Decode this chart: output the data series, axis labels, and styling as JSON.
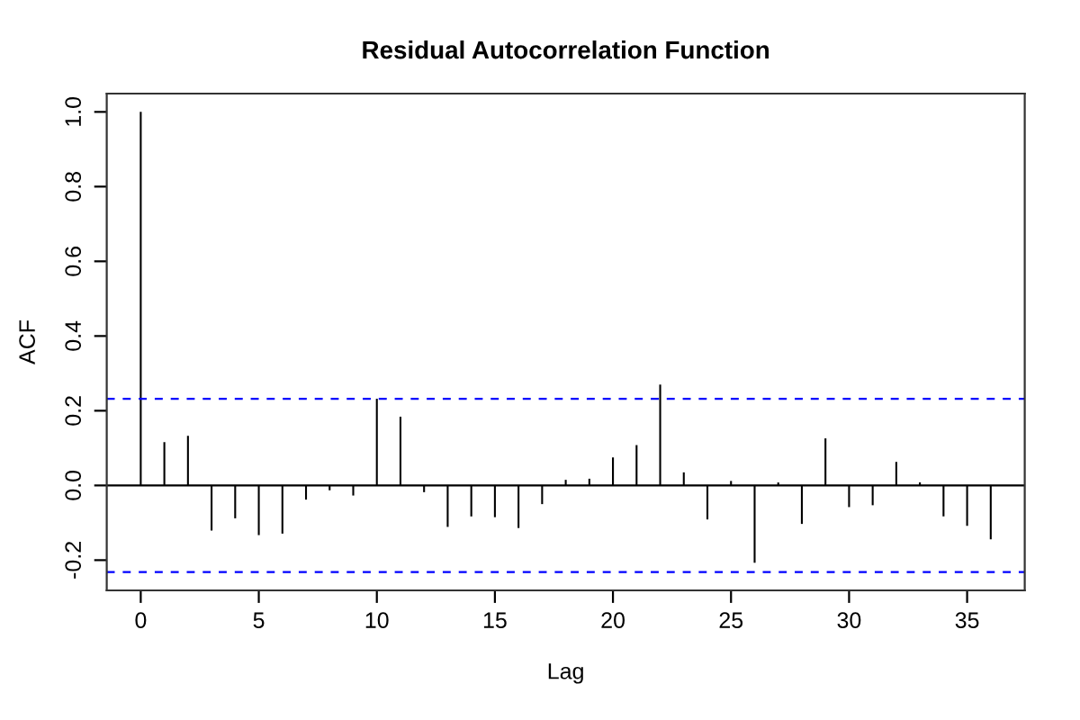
{
  "chart_data": {
    "type": "bar",
    "title": "Residual Autocorrelation Function",
    "xlabel": "Lag",
    "ylabel": "ACF",
    "x": [
      0,
      1,
      2,
      3,
      4,
      5,
      6,
      7,
      8,
      9,
      10,
      11,
      12,
      13,
      14,
      15,
      16,
      17,
      18,
      19,
      20,
      21,
      22,
      23,
      24,
      25,
      26,
      27,
      28,
      29,
      30,
      31,
      32,
      33,
      34,
      35,
      36
    ],
    "values": [
      1.0,
      0.116,
      0.133,
      -0.121,
      -0.088,
      -0.133,
      -0.129,
      -0.038,
      -0.013,
      -0.027,
      0.232,
      0.184,
      -0.018,
      -0.111,
      -0.083,
      -0.085,
      -0.114,
      -0.05,
      0.015,
      0.018,
      0.075,
      0.108,
      0.27,
      0.035,
      -0.091,
      0.012,
      -0.207,
      0.008,
      -0.103,
      0.126,
      -0.058,
      -0.053,
      0.063,
      0.008,
      -0.083,
      -0.108,
      -0.144
    ],
    "color": "#000000",
    "xlim": [
      -1.44,
      37.44
    ],
    "ylim": [
      -0.281,
      1.049
    ],
    "xticks": [
      0,
      5,
      10,
      15,
      20,
      25,
      30,
      35
    ],
    "yticks": [
      {
        "value": -0.2,
        "label": "-0.2"
      },
      {
        "value": 0.0,
        "label": "0.0"
      },
      {
        "value": 0.2,
        "label": "0.2"
      },
      {
        "value": 0.4,
        "label": "0.4"
      },
      {
        "value": 0.6,
        "label": "0.6"
      },
      {
        "value": 0.8,
        "label": "0.8"
      },
      {
        "value": 1.0,
        "label": "1.0"
      }
    ],
    "ref_lines": [
      {
        "axis": "y",
        "value": 0.0,
        "color": "#000000",
        "line_style": "solid"
      },
      {
        "axis": "y",
        "value": 0.232,
        "color": "#0000ff",
        "line_style": "dashed"
      },
      {
        "axis": "y",
        "value": -0.232,
        "color": "#0000ff",
        "line_style": "dashed"
      }
    ],
    "grid": false,
    "legend": false
  }
}
